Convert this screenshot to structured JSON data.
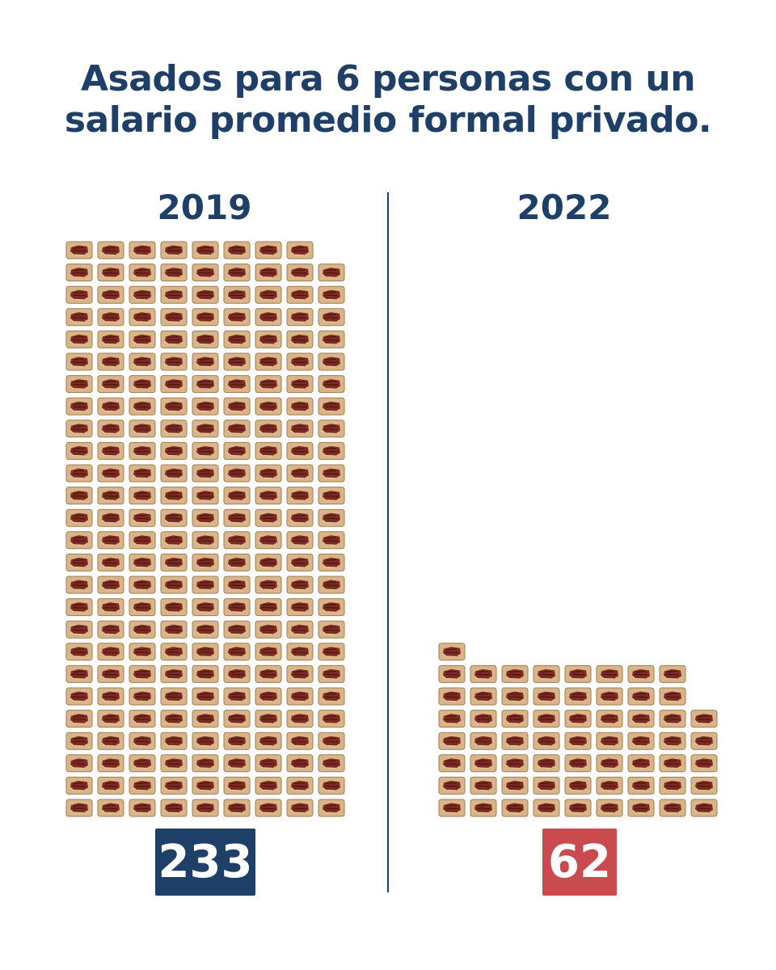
{
  "colors": {
    "title": "#1e4068",
    "badge_2019": "#1e4068",
    "badge_2022": "#c94a4f",
    "tray": "#d9b58a",
    "tray_edge": "#a57a52",
    "meat": "#7d2b22",
    "meat_dark": "#4b1610"
  },
  "icon": "asado-tray-icon",
  "chart_data": {
    "type": "pictogram",
    "title": "Asados para 6 personas con un salario promedio formal privado.",
    "title_lines": [
      "Asados para 6 personas con un",
      "salario promedio formal privado."
    ],
    "categories": [
      "2019",
      "2022"
    ],
    "values": [
      233,
      62
    ],
    "value_labels": [
      "233",
      "62"
    ],
    "unit": "asado"
  }
}
